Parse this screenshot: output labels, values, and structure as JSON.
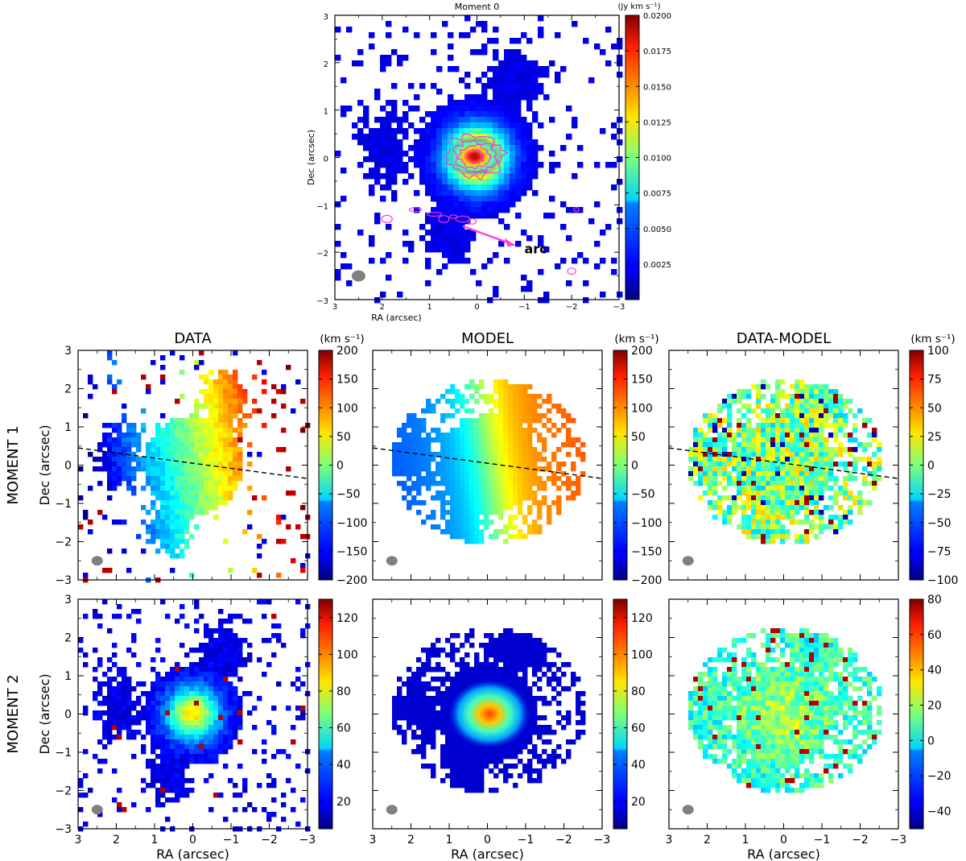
{
  "chart_data": [
    {
      "id": "moment0",
      "type": "heatmap",
      "title": "Moment 0",
      "xlabel": "RA (arcsec)",
      "ylabel": "Dec (arcsec)",
      "xlim": [
        3,
        -3
      ],
      "ylim": [
        -3,
        3
      ],
      "xticks": [
        "3",
        "2",
        "1",
        "0",
        "−1",
        "−2",
        "−3"
      ],
      "yticks": [
        "−3",
        "−2",
        "−1",
        "0",
        "1",
        "2",
        "3"
      ],
      "colorbar_label": "(Jy km s⁻¹)",
      "colorbar_ticks": [
        "0.0025",
        "0.0050",
        "0.0075",
        "0.0100",
        "0.0125",
        "0.0150",
        "0.0175",
        "0.0200"
      ],
      "colorbar_range": [
        0,
        0.02
      ],
      "colormap": "jet",
      "contour_color": "#ff33dd",
      "annotation": "arc",
      "annotation_color": "#ff44dd",
      "beam": [
        2.5,
        -2.5
      ]
    },
    {
      "id": "m1-data",
      "type": "heatmap",
      "title": "DATA",
      "ylabel": "Dec (arcsec)",
      "xlim": [
        3,
        -3
      ],
      "ylim": [
        -3,
        3
      ],
      "colorbar_label": "(km s⁻¹)",
      "colorbar_ticks": [
        "200",
        "150",
        "100",
        "50",
        "0",
        "−50",
        "−100",
        "−150",
        "−200"
      ],
      "colorbar_range": [
        -200,
        200
      ],
      "major_axis_line": true
    },
    {
      "id": "m1-model",
      "type": "heatmap",
      "title": "MODEL",
      "xlim": [
        3,
        -3
      ],
      "ylim": [
        -3,
        3
      ],
      "colorbar_label": "(km s⁻¹)",
      "colorbar_ticks": [
        "200",
        "150",
        "100",
        "50",
        "0",
        "−50",
        "−100",
        "−150",
        "−200"
      ],
      "colorbar_range": [
        -200,
        200
      ],
      "major_axis_line": true
    },
    {
      "id": "m1-resid",
      "type": "heatmap",
      "title": "DATA-MODEL",
      "xlim": [
        3,
        -3
      ],
      "ylim": [
        -3,
        3
      ],
      "colorbar_label": "(km s⁻¹)",
      "colorbar_ticks": [
        "100",
        "75",
        "50",
        "25",
        "0",
        "−25",
        "−50",
        "−75",
        "−100"
      ],
      "colorbar_range": [
        -100,
        100
      ],
      "major_axis_line": true
    },
    {
      "id": "m2-data",
      "type": "heatmap",
      "xlabel": "RA (arcsec)",
      "ylabel": "Dec (arcsec)",
      "xlim": [
        3,
        -3
      ],
      "ylim": [
        -3,
        3
      ],
      "colorbar_ticks": [
        "120",
        "100",
        "80",
        "60",
        "40",
        "20"
      ],
      "colorbar_range": [
        5,
        130
      ]
    },
    {
      "id": "m2-model",
      "type": "heatmap",
      "xlabel": "RA (arcsec)",
      "xlim": [
        3,
        -3
      ],
      "ylim": [
        -3,
        3
      ],
      "colorbar_ticks": [
        "120",
        "100",
        "80",
        "60",
        "40",
        "20"
      ],
      "colorbar_range": [
        5,
        130
      ]
    },
    {
      "id": "m2-resid",
      "type": "heatmap",
      "xlabel": "RA (arcsec)",
      "xlim": [
        3,
        -3
      ],
      "ylim": [
        -3,
        3
      ],
      "colorbar_ticks": [
        "80",
        "60",
        "40",
        "20",
        "0",
        "−20",
        "−40"
      ],
      "colorbar_range": [
        -50,
        80
      ]
    }
  ],
  "row_labels": [
    "MOMENT  1",
    "MOMENT  2"
  ],
  "axis_ticks": [
    "3",
    "2",
    "1",
    "0",
    "−1",
    "−2",
    "−3"
  ],
  "axis_ticks_y": [
    "−3",
    "−2",
    "−1",
    "0",
    "1",
    "2",
    "3"
  ]
}
